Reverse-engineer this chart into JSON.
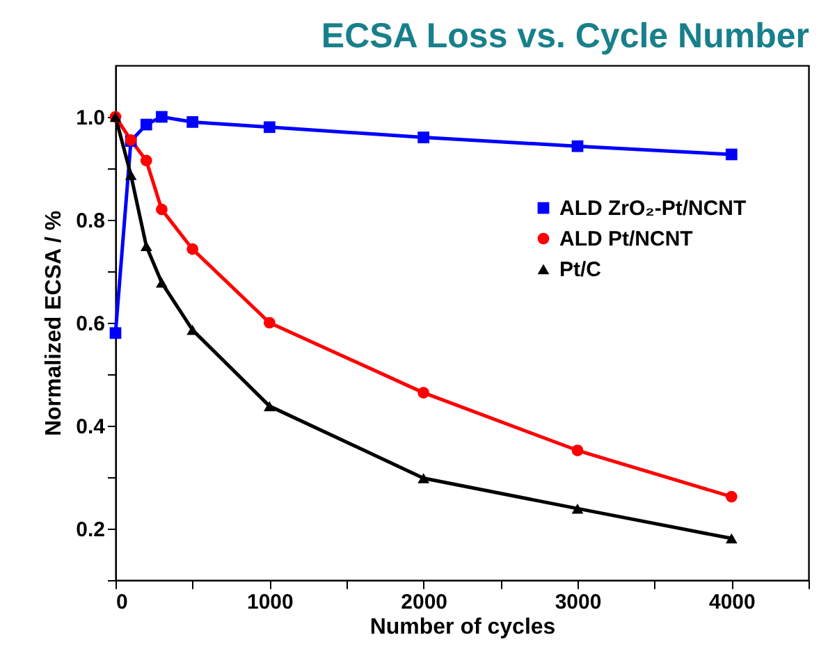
{
  "chart_data": {
    "type": "line",
    "title": "ECSA Loss vs. Cycle Number",
    "xlabel": "Number of cycles",
    "ylabel": "Normalized ECSA / %",
    "xlim": [
      0,
      4500
    ],
    "xticks": [
      0,
      {
        "value": 500,
        "label": null
      },
      1000,
      {
        "value": 1500,
        "label": null
      },
      2000,
      {
        "value": 2500,
        "label": null
      },
      3000,
      {
        "value": 3500,
        "label": null
      },
      4000,
      {
        "value": 4500,
        "label": null
      }
    ],
    "ylim": [
      0.1,
      1.1
    ],
    "yticks": [
      {
        "value": 0.1,
        "label": null
      },
      0.2,
      {
        "value": 0.3,
        "label": null
      },
      0.4,
      {
        "value": 0.5,
        "label": null
      },
      0.6,
      {
        "value": 0.7,
        "label": null
      },
      0.8,
      {
        "value": 0.9,
        "label": null
      },
      {
        "value": 1.0,
        "label": "1.0"
      }
    ],
    "x": [
      0,
      100,
      200,
      300,
      500,
      1000,
      2000,
      3000,
      4000
    ],
    "series": [
      {
        "name": "ALD ZrO₂-Pt/NCNT",
        "color": "#0000ff",
        "marker": "square",
        "values": [
          0.58,
          0.953,
          0.985,
          1.0,
          0.99,
          0.98,
          0.96,
          0.943,
          0.927
        ]
      },
      {
        "name": "ALD Pt/NCNT",
        "color": "#ff0000",
        "marker": "circle",
        "values": [
          1.0,
          0.955,
          0.915,
          0.82,
          0.743,
          0.6,
          0.464,
          0.352,
          0.262
        ]
      },
      {
        "name": "Pt/C",
        "color": "#000000",
        "marker": "triangle",
        "values": [
          1.0,
          0.887,
          0.749,
          0.678,
          0.586,
          0.438,
          0.298,
          0.239,
          0.181
        ]
      }
    ],
    "grid": false,
    "legend": "top right",
    "line_style": "solid"
  }
}
